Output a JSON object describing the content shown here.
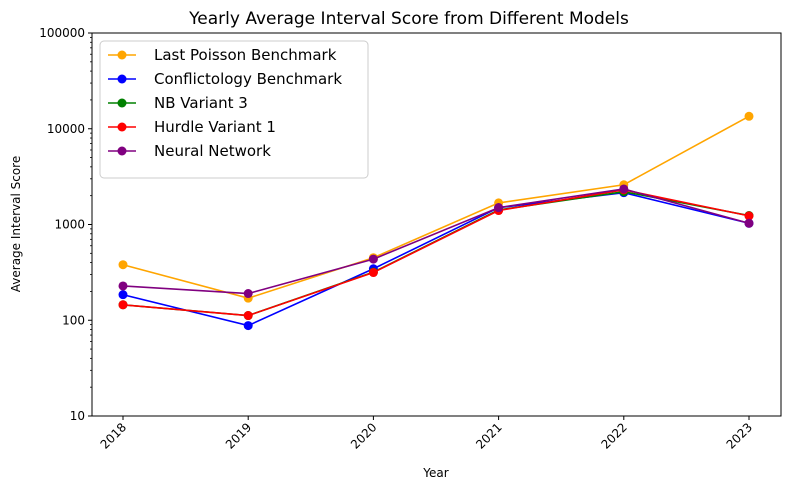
{
  "chart_data": {
    "type": "line",
    "title": "Yearly Average Interval Score from Different Models",
    "xlabel": "Year",
    "ylabel": "Average Interval Score",
    "y_scale": "log",
    "ylim": [
      10,
      100000
    ],
    "y_ticks": [
      "10",
      "100",
      "1000",
      "10000",
      "100000"
    ],
    "y_tick_values": [
      10,
      100,
      1000,
      10000,
      100000
    ],
    "categories": [
      "2018",
      "2019",
      "2020",
      "2021",
      "2022",
      "2023"
    ],
    "x_tick_rotation": 45,
    "grid": false,
    "legend_position": "top-left",
    "series": [
      {
        "name": "Last Poisson Benchmark",
        "color": "#FFA500",
        "values": [
          380,
          170,
          450,
          1680,
          2600,
          13500
        ]
      },
      {
        "name": "Conflictology Benchmark",
        "color": "#0000FF",
        "values": [
          185,
          88,
          345,
          1500,
          2150,
          1030
        ]
      },
      {
        "name": "NB Variant 3",
        "color": "#008000",
        "values": [
          145,
          112,
          318,
          1420,
          2200,
          1240
        ]
      },
      {
        "name": "Hurdle Variant 1",
        "color": "#FF0000",
        "values": [
          145,
          112,
          315,
          1400,
          2300,
          1230
        ]
      },
      {
        "name": "Neural Network",
        "color": "#800080",
        "values": [
          228,
          190,
          435,
          1500,
          2350,
          1030
        ]
      }
    ]
  }
}
